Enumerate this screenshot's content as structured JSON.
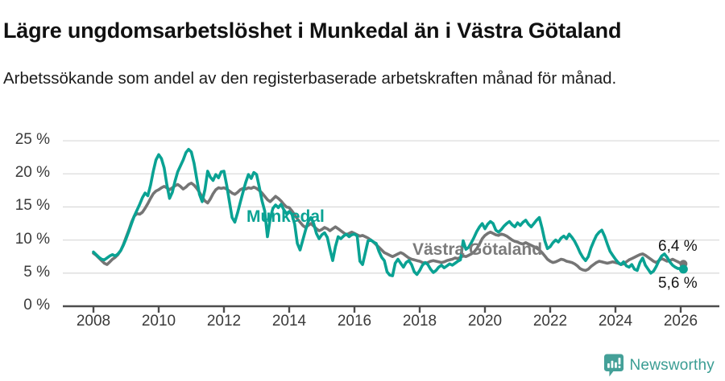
{
  "header": {
    "title": "Lägre ungdomsarbetslöshet i Munkedal än i Västra Götaland",
    "subtitle": "Arbetssökande som andel av den registerbaserade arbetskraften månad för månad."
  },
  "chart_data": {
    "type": "line",
    "title": "Lägre ungdomsarbetslöshet i Munkedal än i Västra Götaland",
    "subtitle": "Arbetssökande som andel av den registerbaserade arbetskraften månad för månad.",
    "unit": "%",
    "x_start": "2008-01",
    "x_end": "2026-02",
    "x_tick_labels": [
      "2008",
      "2010",
      "2012",
      "2014",
      "2016",
      "2018",
      "2020",
      "2022",
      "2024",
      "2026"
    ],
    "y_tick_labels": [
      "0 %",
      "5 %",
      "10 %",
      "15 %",
      "20 %",
      "25 %"
    ],
    "ylim": [
      0,
      26.5
    ],
    "grid": "horizontal",
    "legend_position": "inline-labels",
    "colors": {
      "grid": "#dcdcdc",
      "axis": "#4d4d4d",
      "tick_text": "#3a3a3a"
    },
    "series": [
      {
        "name": "Västra Götaland",
        "color": "#757575",
        "label_color": "#7b7b7b",
        "end_label": "6,4 %",
        "end_value": 6.4,
        "values": [
          8.0,
          7.7,
          7.3,
          6.9,
          6.5,
          6.3,
          6.7,
          7.1,
          7.4,
          7.8,
          8.4,
          9.3,
          10.4,
          11.5,
          12.7,
          13.6,
          14.0,
          13.9,
          14.2,
          14.8,
          15.5,
          16.3,
          17.0,
          17.4,
          17.6,
          17.9,
          18.1,
          17.9,
          17.6,
          17.9,
          18.2,
          18.4,
          18.1,
          17.7,
          18.0,
          18.4,
          18.6,
          18.3,
          17.8,
          17.2,
          16.5,
          15.9,
          15.6,
          16.2,
          17.0,
          17.6,
          17.9,
          17.8,
          17.9,
          17.7,
          17.4,
          17.1,
          16.9,
          17.2,
          17.6,
          17.8,
          17.7,
          17.9,
          17.8,
          18.0,
          17.8,
          17.5,
          17.1,
          16.6,
          16.1,
          15.8,
          16.2,
          16.6,
          16.3,
          15.9,
          15.4,
          15.0,
          14.9,
          14.4,
          13.8,
          13.2,
          12.7,
          12.2,
          11.9,
          12.2,
          12.5,
          12.1,
          11.7,
          11.4,
          11.6,
          11.9,
          11.7,
          11.4,
          11.7,
          12.0,
          11.7,
          11.4,
          11.1,
          10.8,
          11.0,
          11.2,
          11.0,
          10.8,
          10.6,
          10.7,
          10.5,
          10.3,
          10.0,
          9.7,
          9.3,
          8.9,
          8.5,
          8.1,
          7.9,
          7.7,
          7.5,
          7.7,
          7.9,
          8.1,
          7.9,
          7.6,
          7.3,
          7.1,
          7.0,
          6.9,
          6.8,
          6.6,
          6.5,
          6.6,
          6.8,
          6.9,
          6.8,
          6.7,
          6.6,
          6.7,
          6.9,
          7.0,
          7.1,
          7.3,
          7.2,
          7.4,
          7.6,
          7.5,
          7.7,
          7.9,
          8.2,
          8.7,
          9.4,
          10.2,
          10.7,
          11.0,
          11.2,
          11.0,
          10.8,
          10.7,
          10.9,
          10.8,
          10.6,
          10.3,
          10.0,
          9.8,
          9.7,
          9.5,
          9.4,
          9.6,
          9.4,
          9.2,
          9.0,
          8.8,
          8.5,
          8.1,
          7.6,
          7.1,
          6.8,
          6.6,
          6.7,
          6.9,
          7.1,
          7.0,
          6.8,
          6.7,
          6.6,
          6.4,
          6.1,
          5.7,
          5.5,
          5.4,
          5.6,
          6.0,
          6.3,
          6.6,
          6.8,
          6.7,
          6.6,
          6.5,
          6.6,
          6.7,
          6.6,
          6.5,
          6.3,
          6.4,
          6.7,
          7.0,
          7.2,
          7.4,
          7.6,
          7.8,
          7.9,
          7.7,
          7.4,
          7.1,
          6.8,
          6.6,
          6.9,
          7.2,
          7.0,
          6.8,
          6.9,
          7.1,
          6.9,
          6.7,
          6.5,
          6.4
        ]
      },
      {
        "name": "Munkedal",
        "color": "#0aa293",
        "label_color": "#0aa293",
        "end_label": "5,6 %",
        "end_value": 5.6,
        "values": [
          8.2,
          7.8,
          7.4,
          7.1,
          7.0,
          7.3,
          7.6,
          7.8,
          7.6,
          7.9,
          8.4,
          9.2,
          10.2,
          11.3,
          12.5,
          13.6,
          14.5,
          15.4,
          16.4,
          17.1,
          16.7,
          18.3,
          20.4,
          22.1,
          22.9,
          22.3,
          20.9,
          18.4,
          16.3,
          17.2,
          18.9,
          20.3,
          21.2,
          22.1,
          23.2,
          23.7,
          23.3,
          21.6,
          19.2,
          16.9,
          15.8,
          17.6,
          20.4,
          19.5,
          19.0,
          19.9,
          19.4,
          20.3,
          20.4,
          18.3,
          15.8,
          13.4,
          12.7,
          14.1,
          15.7,
          17.2,
          18.7,
          19.9,
          19.3,
          20.2,
          19.9,
          18.0,
          15.9,
          14.4,
          10.5,
          13.2,
          14.8,
          15.3,
          14.9,
          15.4,
          14.6,
          14.0,
          14.3,
          13.9,
          12.4,
          9.5,
          8.5,
          10.0,
          11.5,
          12.8,
          13.4,
          12.5,
          11.0,
          10.2,
          10.8,
          11.1,
          10.4,
          8.6,
          6.9,
          9.0,
          10.5,
          10.2,
          10.6,
          10.9,
          10.5,
          10.8,
          10.9,
          10.6,
          6.8,
          6.3,
          8.1,
          9.9,
          10.0,
          9.7,
          9.5,
          8.3,
          7.4,
          6.9,
          5.2,
          4.7,
          4.6,
          6.5,
          7.1,
          6.5,
          5.9,
          6.6,
          6.9,
          6.3,
          5.2,
          4.8,
          5.4,
          6.2,
          6.6,
          6.3,
          5.6,
          5.1,
          5.4,
          5.9,
          6.2,
          5.8,
          6.1,
          6.4,
          6.2,
          6.5,
          6.8,
          7.0,
          9.9,
          8.6,
          8.9,
          9.6,
          10.4,
          11.3,
          12.0,
          12.5,
          11.7,
          12.4,
          12.8,
          12.5,
          11.5,
          11.2,
          11.6,
          12.1,
          12.5,
          12.8,
          12.3,
          12.0,
          12.6,
          12.2,
          12.7,
          13.0,
          12.4,
          12.0,
          12.5,
          13.0,
          13.4,
          11.8,
          9.9,
          8.7,
          9.0,
          9.6,
          10.0,
          9.7,
          10.3,
          10.6,
          10.2,
          10.9,
          10.4,
          9.8,
          9.0,
          8.1,
          7.4,
          6.9,
          7.5,
          8.8,
          9.8,
          10.7,
          11.2,
          11.5,
          10.6,
          9.4,
          8.3,
          7.7,
          7.1,
          6.6,
          6.3,
          6.7,
          6.1,
          5.9,
          6.3,
          5.6,
          5.4,
          6.6,
          7.3,
          6.2,
          5.6,
          5.0,
          5.3,
          6.0,
          6.9,
          7.6,
          7.9,
          7.4,
          6.7,
          6.2,
          5.9,
          5.7,
          5.7,
          5.6
        ]
      }
    ]
  },
  "footer": {
    "brand": "Newsworthy",
    "brand_color": "#3a9d93",
    "logo_color": "#44a098"
  }
}
